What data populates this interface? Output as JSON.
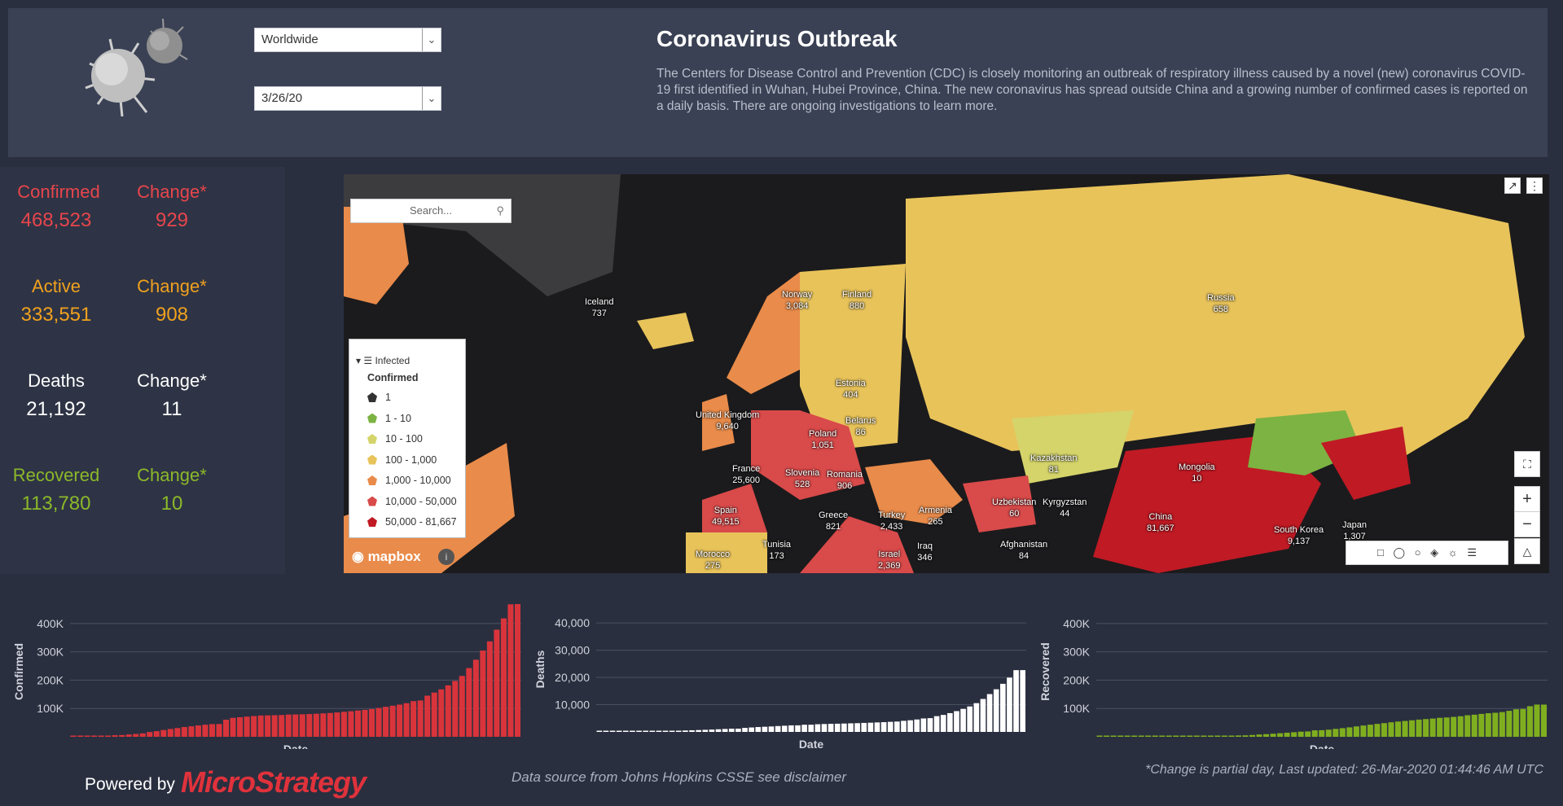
{
  "header": {
    "region_select": "Worldwide",
    "date_select": "3/26/20",
    "title": "Coronavirus Outbreak",
    "description": "The Centers for Disease Control and Prevention (CDC) is closely monitoring an outbreak of respiratory illness caused by a novel (new) coronavirus COVID-19 first identified in Wuhan, Hubei Province, China. The new coronavirus has spread outside China and a growing number of confirmed cases is reported on a daily basis. There are ongoing investigations to learn more."
  },
  "stats": [
    {
      "label": "Confirmed",
      "value": "468,523",
      "change_label": "Change*",
      "change": "929",
      "color": "#e8454c"
    },
    {
      "label": "Active",
      "value": "333,551",
      "change_label": "Change*",
      "change": "908",
      "color": "#f0a11e"
    },
    {
      "label": "Deaths",
      "value": "21,192",
      "change_label": "Change*",
      "change": "11",
      "color": "#ffffff"
    },
    {
      "label": "Recovered",
      "value": "113,780",
      "change_label": "Change*",
      "change": "10",
      "color": "#8cb82a"
    }
  ],
  "map": {
    "search_placeholder": "Search...",
    "legend_title": "Infected",
    "legend_subtitle": "Confirmed",
    "legend_items": [
      {
        "label": "1",
        "color": "#333333"
      },
      {
        "label": "1 - 10",
        "color": "#7cb342"
      },
      {
        "label": "10 - 100",
        "color": "#d4d46a"
      },
      {
        "label": "100 - 1,000",
        "color": "#e8c35a"
      },
      {
        "label": "1,000 - 10,000",
        "color": "#e98b4a"
      },
      {
        "label": "10,000 - 50,000",
        "color": "#d94a4a"
      },
      {
        "label": "50,000 - 81,667",
        "color": "#c01a24"
      }
    ],
    "attribution": "mapbox",
    "country_labels": [
      {
        "name": "Iceland",
        "value": "737"
      },
      {
        "name": "Norway",
        "value": "3,084"
      },
      {
        "name": "Finland",
        "value": "880"
      },
      {
        "name": "Russia",
        "value": "658"
      },
      {
        "name": "Estonia",
        "value": "404"
      },
      {
        "name": "United Kingdom",
        "value": "9,640"
      },
      {
        "name": "Poland",
        "value": "1,051"
      },
      {
        "name": "Belarus",
        "value": "86"
      },
      {
        "name": "France",
        "value": "25,600"
      },
      {
        "name": "Slovenia",
        "value": "528"
      },
      {
        "name": "Romania",
        "value": "906"
      },
      {
        "name": "Kazakhstan",
        "value": "81"
      },
      {
        "name": "Mongolia",
        "value": "10"
      },
      {
        "name": "Spain",
        "value": "49,515"
      },
      {
        "name": "Greece",
        "value": "821"
      },
      {
        "name": "Turkey",
        "value": "2,433"
      },
      {
        "name": "Armenia",
        "value": "265"
      },
      {
        "name": "Uzbekistan",
        "value": "60"
      },
      {
        "name": "Kyrgyzstan",
        "value": "44"
      },
      {
        "name": "China",
        "value": "81,667"
      },
      {
        "name": "South Korea",
        "value": "9,137"
      },
      {
        "name": "Japan",
        "value": "1,307"
      },
      {
        "name": "Tunisia",
        "value": "173"
      },
      {
        "name": "Morocco",
        "value": "275"
      },
      {
        "name": "Israel",
        "value": "2,369"
      },
      {
        "name": "Iraq",
        "value": "346"
      },
      {
        "name": "Afghanistan",
        "value": "84"
      }
    ]
  },
  "chart_data": [
    {
      "type": "bar",
      "title": "",
      "xlabel": "Date",
      "ylabel": "Confirmed",
      "color": "#d9343b",
      "yticks": [
        "100K",
        "200K",
        "300K",
        "400K"
      ],
      "ylim": [
        0,
        460000
      ],
      "values": [
        555,
        654,
        941,
        1434,
        2118,
        2927,
        5578,
        6166,
        8234,
        9927,
        12038,
        16787,
        19881,
        23892,
        27635,
        30817,
        34391,
        37120,
        40150,
        42762,
        44802,
        45221,
        60368,
        66885,
        69030,
        71224,
        73258,
        75136,
        75639,
        76197,
        76819,
        78572,
        78958,
        79561,
        80406,
        81388,
        82746,
        84112,
        86011,
        88369,
        90306,
        92840,
        95120,
        97886,
        101801,
        105847,
        109821,
        113590,
        118620,
        125875,
        128343,
        145193,
        156097,
        167449,
        181546,
        197168,
        214915,
        242713,
        272167,
        304528,
        336953,
        378235,
        418045,
        467653,
        468523
      ]
    },
    {
      "type": "bar",
      "title": "",
      "xlabel": "Date",
      "ylabel": "Deaths",
      "color": "#ffffff",
      "yticks": [
        "10,000",
        "20,000",
        "30,000",
        "40,000"
      ],
      "ylim": [
        0,
        43000
      ],
      "values": [
        17,
        18,
        26,
        42,
        56,
        82,
        131,
        133,
        171,
        213,
        259,
        362,
        426,
        492,
        564,
        634,
        719,
        806,
        906,
        1013,
        1113,
        1118,
        1371,
        1523,
        1666,
        1770,
        1868,
        2007,
        2122,
        2247,
        2251,
        2458,
        2469,
        2629,
        2708,
        2770,
        2814,
        2872,
        2941,
        2996,
        3085,
        3160,
        3254,
        3348,
        3460,
        3558,
        3802,
        3988,
        4262,
        4615,
        4720,
        5404,
        5819,
        6440,
        7126,
        7905,
        8733,
        9867,
        11299,
        12973,
        14623,
        16497,
        18615,
        21181,
        21192
      ]
    },
    {
      "type": "bar",
      "title": "",
      "xlabel": "Date",
      "ylabel": "Recovered",
      "color": "#7fae1f",
      "yticks": [
        "100K",
        "200K",
        "300K",
        "400K"
      ],
      "ylim": [
        0,
        460000
      ],
      "values": [
        28,
        30,
        36,
        39,
        52,
        61,
        107,
        126,
        143,
        222,
        284,
        472,
        623,
        852,
        1124,
        1487,
        2011,
        2616,
        3244,
        3946,
        4683,
        5150,
        6295,
        8058,
        9395,
        10865,
        12583,
        14352,
        16121,
        18177,
        18890,
        22886,
        23394,
        25227,
        27905,
        30384,
        33277,
        36711,
        39782,
        42716,
        45602,
        48228,
        51170,
        53796,
        55865,
        58358,
        60694,
        62494,
        64404,
        67003,
        68324,
        70251,
        72624,
        76034,
        78088,
        80840,
        83207,
        84854,
        87256,
        91676,
        97243,
        98334,
        107980,
        113770,
        113780
      ]
    }
  ],
  "footer": {
    "powered_by": "Powered by",
    "brand": "MicroStrategy",
    "source": "Data source from Johns Hopkins CSSE see disclaimer",
    "updated": "*Change is partial day, Last updated: 26-Mar-2020 01:44:46 AM UTC"
  }
}
